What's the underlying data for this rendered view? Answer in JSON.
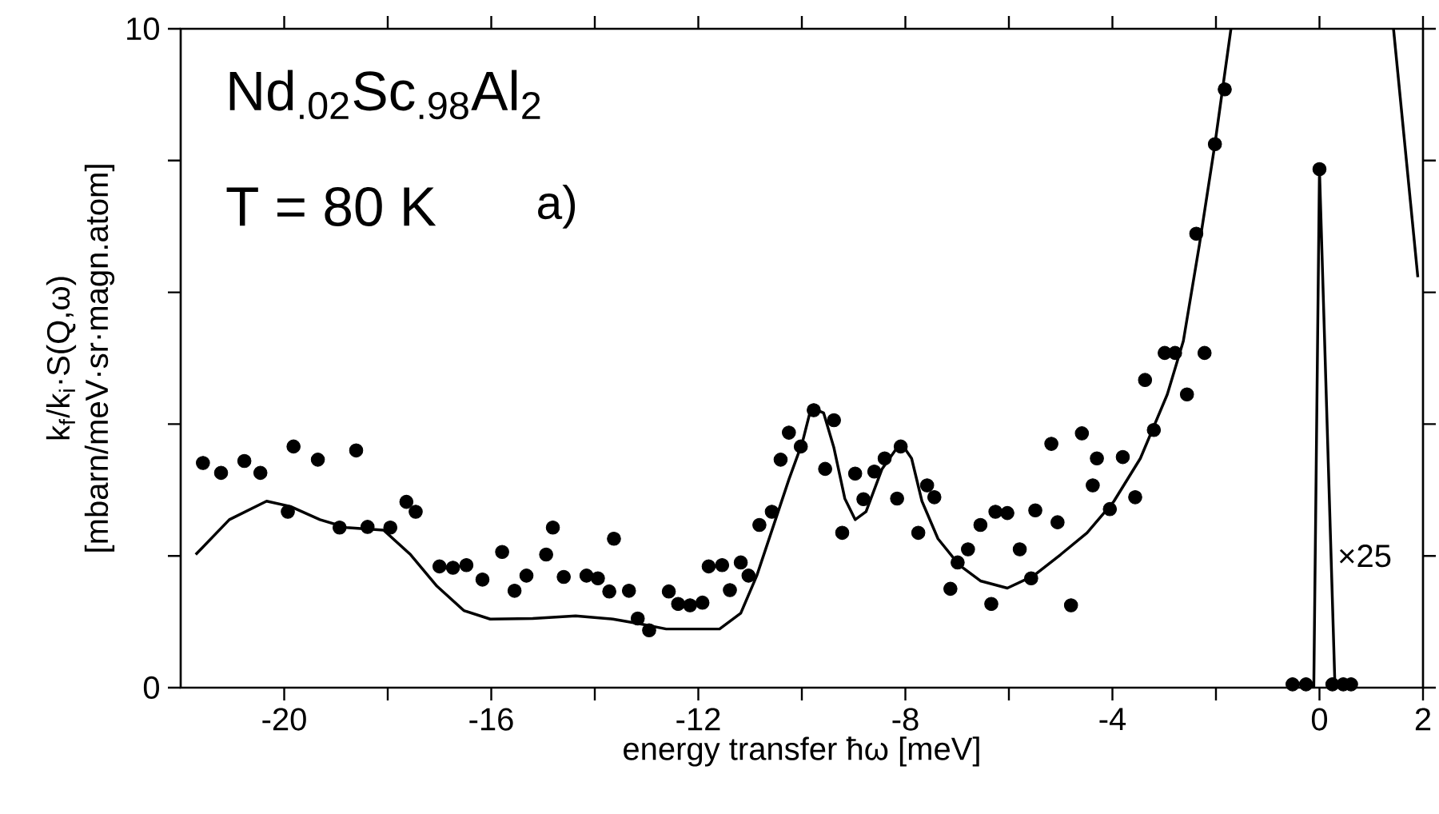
{
  "chart_data": {
    "type": "scatter",
    "xlabel": "energy transfer ħω [meV]",
    "ylabel": "k$_{f}$/k$_{i}$·S(Q,ω) [mbarn/meV·sr·magn.atom]",
    "xlim": [
      -22,
      2
    ],
    "ylim": [
      0,
      10
    ],
    "xticks": [
      -20,
      {
        "value": -18,
        "label": null
      },
      -16,
      {
        "value": -14,
        "label": null
      },
      -12,
      {
        "value": -10,
        "label": null
      },
      -8,
      {
        "value": -6,
        "label": null
      },
      -4,
      {
        "value": -2,
        "label": null
      },
      0,
      2
    ],
    "yticks": [
      0,
      {
        "value": 2,
        "label": null
      },
      {
        "value": 4,
        "label": null
      },
      {
        "value": 6,
        "label": null
      },
      {
        "value": 8,
        "label": null
      },
      10
    ],
    "annotations": [
      "Nd$_{.02}$Sc$_{.98}$Al$_{2}$",
      "T = 80 K",
      "a)",
      {
        "text": "×25",
        "x": 0.3,
        "y": 2.0
      }
    ],
    "series": [
      {
        "type": "scatter",
        "color": "#000000",
        "marker": "circle",
        "x": [
          -21.57,
          -21.22,
          -20.77,
          -20.46,
          -19.93,
          -19.82,
          -19.35,
          -18.93,
          -18.61,
          -18.39,
          -17.95,
          -17.64,
          -17.46,
          -17.0,
          -16.74,
          -16.48,
          -16.17,
          -15.79,
          -15.55,
          -15.32,
          -14.94,
          -14.81,
          -14.6,
          -14.16,
          -13.94,
          -13.72,
          -13.63,
          -13.34,
          -13.17,
          -12.95,
          -12.57,
          -12.39,
          -12.16,
          -11.92,
          -11.8,
          -11.54,
          -11.39,
          -11.18,
          -11.03,
          -10.82,
          -10.58,
          -10.41,
          -10.25,
          -10.02,
          -9.77,
          -9.38,
          -9.55,
          -9.22,
          -8.97,
          -8.81,
          -8.6,
          -8.4,
          -8.16,
          -8.09,
          -7.75,
          -7.58,
          -7.44,
          -7.13,
          -6.99,
          -6.79,
          -6.55,
          -6.34,
          -6.26,
          -6.03,
          -5.79,
          -5.57,
          -5.49,
          -5.18,
          -5.06,
          -4.8,
          -4.59,
          -4.38,
          -4.3,
          -4.05,
          -3.8,
          -3.56,
          -3.37,
          -3.2,
          -2.99,
          -2.79,
          -2.56,
          -2.22,
          -2.38,
          -2.02,
          -1.83,
          -0.52,
          -0.26,
          0.0,
          0.25,
          0.46,
          0.61
        ],
        "values": [
          3.41,
          3.26,
          3.44,
          3.26,
          2.67,
          3.66,
          3.46,
          2.43,
          3.6,
          2.44,
          2.43,
          2.82,
          2.67,
          1.84,
          1.82,
          1.86,
          1.64,
          2.06,
          1.47,
          1.7,
          2.02,
          2.43,
          1.68,
          1.7,
          1.66,
          1.46,
          2.26,
          1.47,
          1.05,
          0.87,
          1.46,
          1.27,
          1.25,
          1.29,
          1.84,
          1.86,
          1.48,
          1.9,
          1.7,
          2.47,
          2.67,
          3.46,
          3.87,
          3.66,
          4.21,
          4.06,
          3.32,
          2.35,
          3.25,
          2.86,
          3.28,
          3.48,
          2.87,
          3.66,
          2.35,
          3.07,
          2.89,
          1.5,
          1.9,
          2.1,
          2.47,
          1.27,
          2.67,
          2.65,
          2.1,
          1.66,
          2.69,
          3.7,
          2.51,
          1.25,
          3.86,
          3.07,
          3.48,
          2.71,
          3.5,
          2.89,
          4.67,
          3.91,
          5.08,
          5.08,
          4.45,
          5.08,
          6.89,
          8.25,
          9.08,
          0.05,
          0.05,
          7.87,
          0.05,
          0.05,
          0.05
        ]
      },
      {
        "type": "line",
        "color": "#000000",
        "x": [
          -21.71,
          -21.06,
          -20.34,
          -19.88,
          -19.31,
          -18.8,
          -18.08,
          -17.56,
          -17.05,
          -16.53,
          -16.02,
          -15.2,
          -14.37,
          -13.65,
          -13.14,
          -12.62,
          -12.11,
          -11.59,
          -11.18,
          -10.87,
          -10.56,
          -10.25,
          -9.99,
          -9.82,
          -9.58,
          -9.38,
          -9.17,
          -8.97,
          -8.76,
          -8.45,
          -8.09,
          -7.88,
          -7.68,
          -7.37,
          -6.96,
          -6.55,
          -6.03,
          -5.52,
          -5.0,
          -4.49,
          -3.97,
          -3.46,
          -2.94,
          -2.63,
          -2.32,
          -2.02,
          -1.71
        ],
        "values": [
          2.02,
          2.55,
          2.83,
          2.75,
          2.55,
          2.43,
          2.39,
          2.02,
          1.54,
          1.17,
          1.04,
          1.05,
          1.09,
          1.04,
          0.97,
          0.89,
          0.89,
          0.89,
          1.13,
          1.7,
          2.43,
          3.16,
          3.72,
          4.25,
          4.17,
          3.64,
          2.87,
          2.55,
          2.67,
          3.32,
          3.72,
          3.48,
          2.83,
          2.26,
          1.86,
          1.62,
          1.51,
          1.7,
          2.02,
          2.35,
          2.83,
          3.48,
          4.45,
          5.26,
          6.72,
          8.25,
          10
        ]
      },
      {
        "type": "line",
        "color": "#000000",
        "x": [
          -0.11,
          0.0,
          0.3
        ],
        "values": [
          0,
          7.87,
          0
        ]
      },
      {
        "type": "line",
        "color": "#000000",
        "x": [
          1.43,
          1.9
        ],
        "values": [
          10,
          6.23
        ]
      }
    ]
  }
}
